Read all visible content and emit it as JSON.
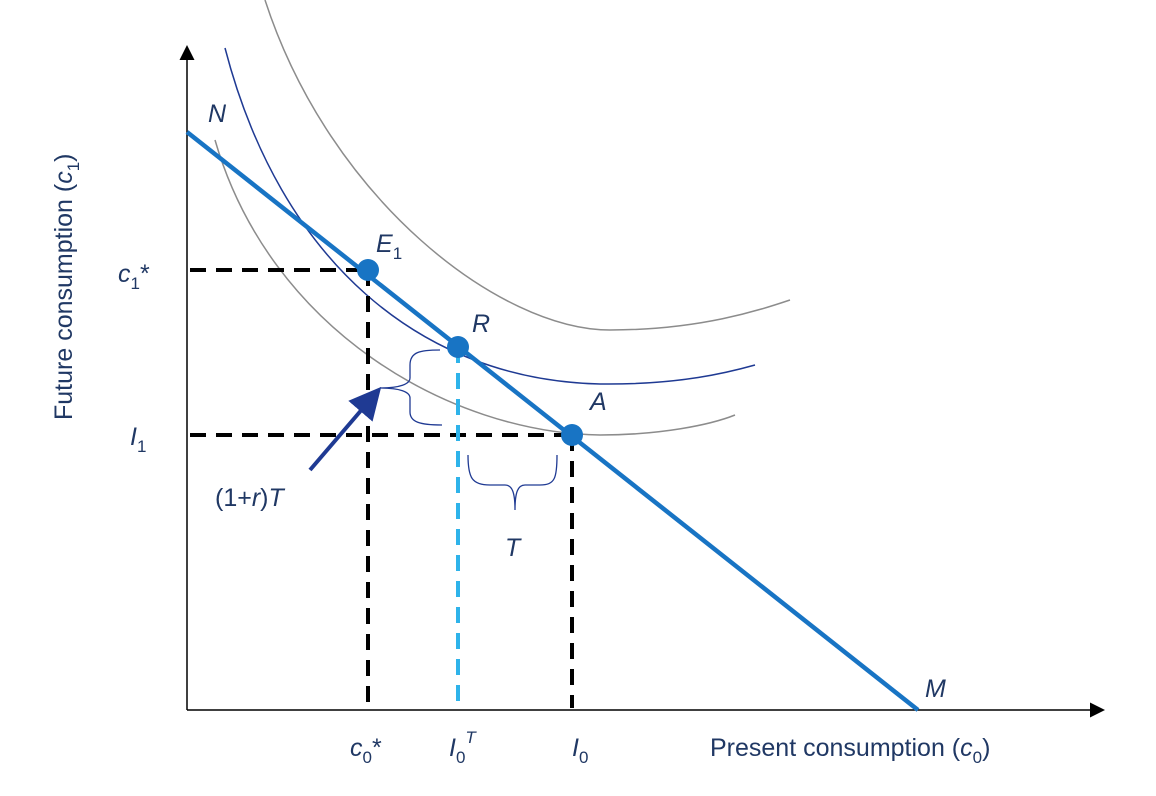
{
  "axes": {
    "y_title": {
      "text": "Future consumption (",
      "var": "c",
      "sub": "1",
      "end": ")"
    },
    "x_title": {
      "text": "Present consumption (",
      "var": "c",
      "sub": "0",
      "end": ")"
    }
  },
  "y_labels": [
    {
      "var": "c",
      "sub": "1",
      "after": "*"
    },
    {
      "var": "I",
      "sub": "1"
    }
  ],
  "x_labels": [
    {
      "var": "c",
      "sub": "0",
      "after": "*"
    },
    {
      "var": "I",
      "sub": "0",
      "sup": "T"
    },
    {
      "var": "I",
      "sub": "0"
    }
  ],
  "points": [
    {
      "var": "N"
    },
    {
      "var": "E",
      "sub": "1"
    },
    {
      "var": "R"
    },
    {
      "var": "A"
    },
    {
      "var": "M"
    }
  ],
  "annotations": {
    "tax_future": {
      "open": "(1+",
      "r": "r",
      "close": ")",
      "t": "T"
    },
    "tax_present": "T"
  }
}
